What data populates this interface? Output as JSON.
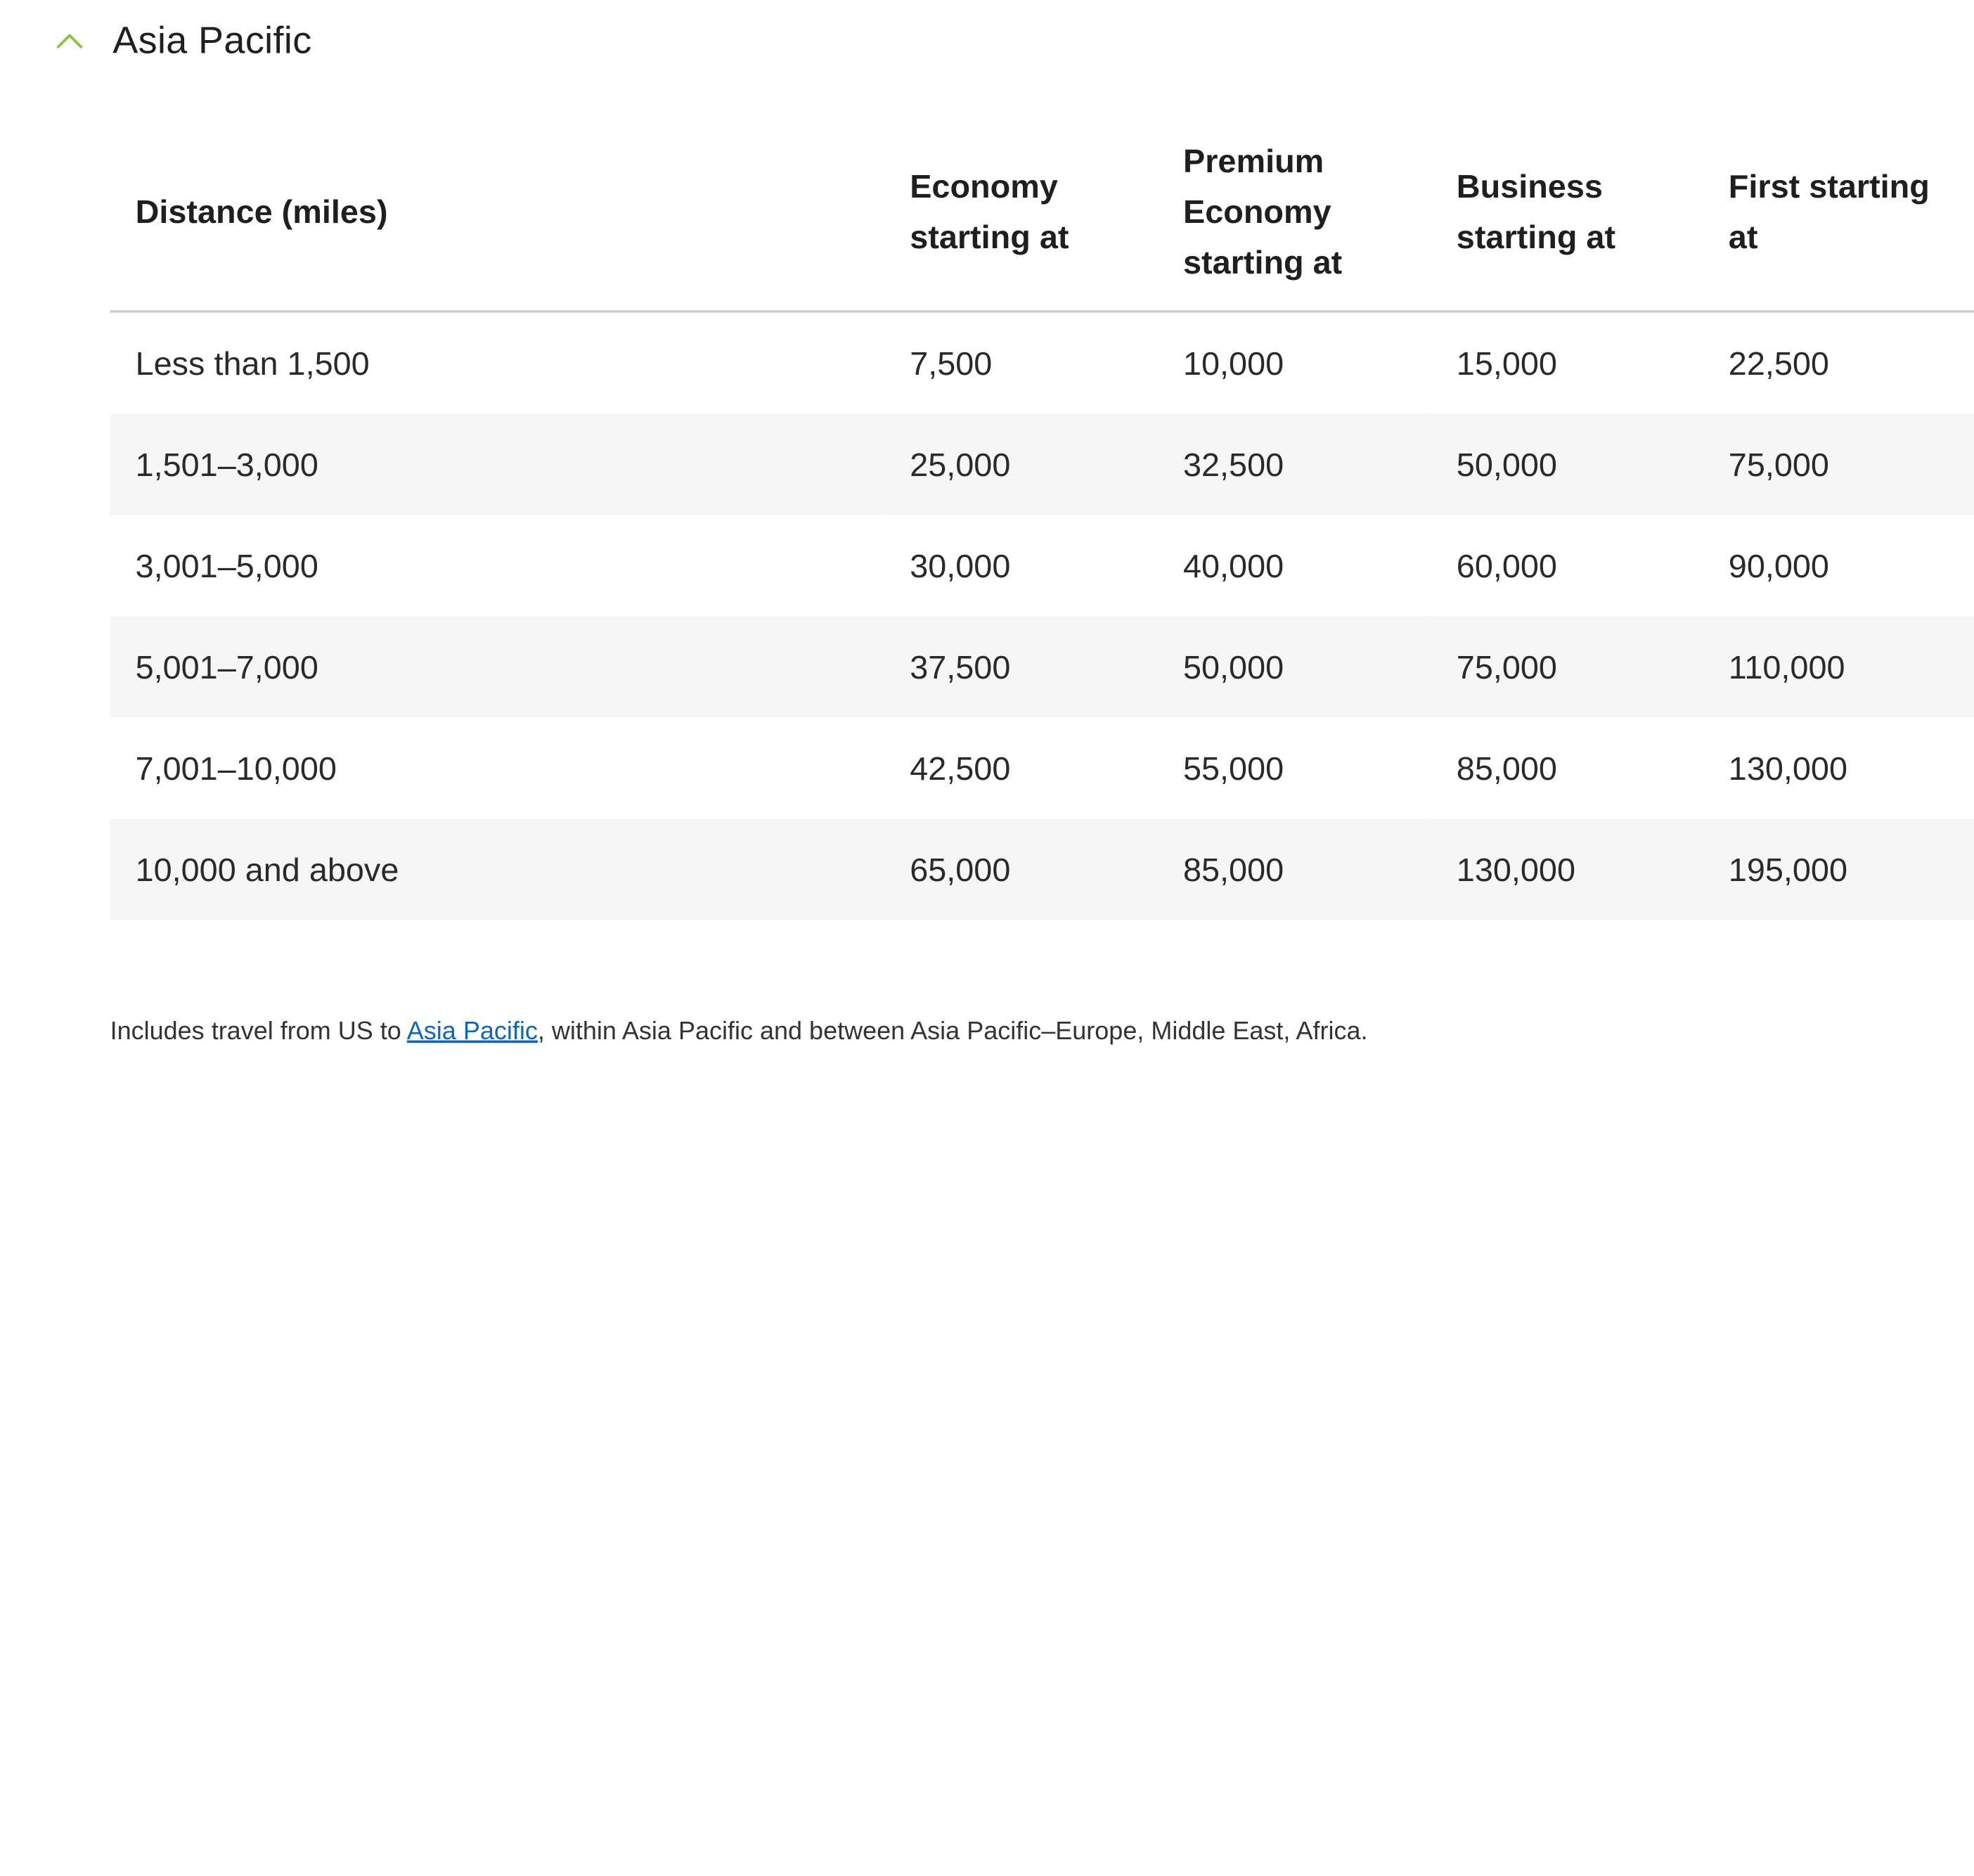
{
  "section": {
    "title": "Asia Pacific",
    "chevron_icon": "chevron-up-icon",
    "accent_color": "#8cc63f"
  },
  "table": {
    "headers": [
      "Distance (miles)",
      "Economy starting at",
      "Premium Economy starting at",
      "Business starting at",
      "First starting at"
    ],
    "rows": [
      [
        "Less than 1,500",
        "7,500",
        "10,000",
        "15,000",
        "22,500"
      ],
      [
        "1,501–3,000",
        "25,000",
        "32,500",
        "50,000",
        "75,000"
      ],
      [
        "3,001–5,000",
        "30,000",
        "40,000",
        "60,000",
        "90,000"
      ],
      [
        "5,001–7,000",
        "37,500",
        "50,000",
        "75,000",
        "110,000"
      ],
      [
        "7,001–10,000",
        "42,500",
        "55,000",
        "85,000",
        "130,000"
      ],
      [
        "10,000 and above",
        "65,000",
        "85,000",
        "130,000",
        "195,000"
      ]
    ]
  },
  "footnote": {
    "prefix": "Includes travel from US to ",
    "link_text": "Asia Pacific",
    "suffix": ", within Asia Pacific and between Asia Pacific–Europe, Middle East, Africa.",
    "link_color": "#0b66c2"
  }
}
